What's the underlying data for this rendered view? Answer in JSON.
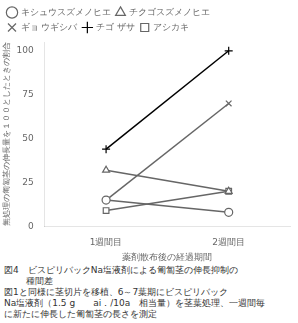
{
  "chart_data": {
    "type": "line",
    "title": "図4　ビスピリバックNa塩液剤による匍匐茎の伸長抑制の",
    "subtitle": "種間差",
    "annotations": [
      "図1と同様に茎切片を移植、6～7葉期にビスピリバック",
      "Na塩液剤（1.5 g　　ai．/10a　相当量）を茎葉処理、一週間毎",
      "に新たに伸長した匍匐茎の長さを測定"
    ],
    "x_label": "薬剤散布後の経過期間",
    "y_label": "無処理の匍匐茎の伸長量を１００としたときの割合",
    "categories": [
      "1週間目",
      "2週間目"
    ],
    "series": [
      {
        "name": "キシュウスズメノヒエ",
        "color": "#666666",
        "marker": "circle",
        "values": [
          15,
          8
        ]
      },
      {
        "name": "チクゴスズメノヒエ",
        "color": "#666666",
        "marker": "triangle",
        "values": [
          32,
          20
        ]
      },
      {
        "name": "ギョ ウギシバ",
        "color": "#666666",
        "marker": "x",
        "values": [
          15,
          70
        ]
      },
      {
        "name": "チゴ ザサ",
        "color": "#000000",
        "marker": "plus",
        "values": [
          44,
          100
        ]
      },
      {
        "name": "アシカキ",
        "color": "#666666",
        "marker": "square",
        "values": [
          9,
          20
        ]
      }
    ],
    "ylim": [
      0,
      105
    ],
    "yticks": [
      0,
      25,
      50,
      75,
      100
    ],
    "grid": false,
    "legend": "upper left"
  }
}
